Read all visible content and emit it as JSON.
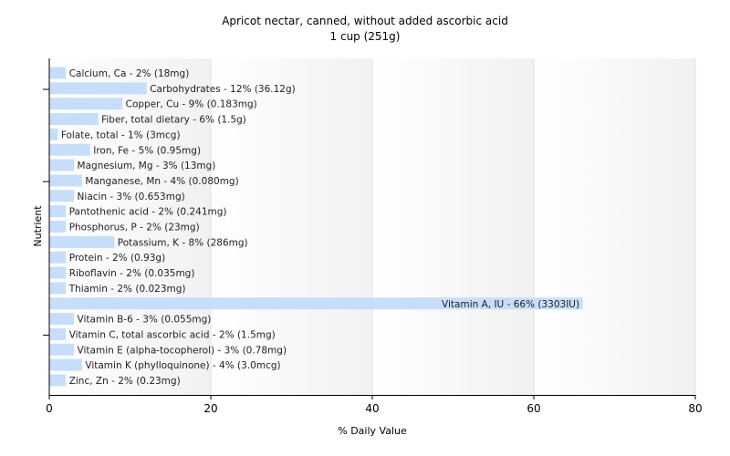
{
  "chart_data": {
    "type": "bar",
    "orientation": "horizontal",
    "title": "Apricot nectar, canned, without added ascorbic acid",
    "subtitle": "1 cup (251g)",
    "xlabel": "% Daily Value",
    "ylabel": "Nutrient",
    "xlim": [
      0,
      80
    ],
    "xticks": [
      "0",
      "20",
      "40",
      "60",
      "80"
    ],
    "grid": "vertical",
    "bar_color": "#c6defa",
    "categories": [
      "Calcium, Ca",
      "Carbohydrates",
      "Copper, Cu",
      "Fiber, total dietary",
      "Folate, total",
      "Iron, Fe",
      "Magnesium, Mg",
      "Manganese, Mn",
      "Niacin",
      "Pantothenic acid",
      "Phosphorus, P",
      "Potassium, K",
      "Protein",
      "Riboflavin",
      "Thiamin",
      "Vitamin A, IU",
      "Vitamin B-6",
      "Vitamin C, total ascorbic acid",
      "Vitamin E (alpha-tocopherol)",
      "Vitamin K (phylloquinone)",
      "Zinc, Zn"
    ],
    "values": [
      2,
      12,
      9,
      6,
      1,
      5,
      3,
      4,
      3,
      2,
      2,
      8,
      2,
      2,
      2,
      66,
      3,
      2,
      3,
      4,
      2
    ],
    "labels": [
      "Calcium, Ca - 2% (18mg)",
      "Carbohydrates - 12% (36.12g)",
      "Copper, Cu - 9% (0.183mg)",
      "Fiber, total dietary - 6% (1.5g)",
      "Folate, total - 1% (3mcg)",
      "Iron, Fe - 5% (0.95mg)",
      "Magnesium, Mg - 3% (13mg)",
      "Manganese, Mn - 4% (0.080mg)",
      "Niacin - 3% (0.653mg)",
      "Pantothenic acid - 2% (0.241mg)",
      "Phosphorus, P - 2% (23mg)",
      "Potassium, K - 8% (286mg)",
      "Protein - 2% (0.93g)",
      "Riboflavin - 2% (0.035mg)",
      "Thiamin - 2% (0.023mg)",
      "Vitamin A, IU - 66% (3303IU)",
      "Vitamin B-6 - 3% (0.055mg)",
      "Vitamin C, total ascorbic acid - 2% (1.5mg)",
      "Vitamin E (alpha-tocopherol) - 3% (0.78mg)",
      "Vitamin K (phylloquinone) - 4% (3.0mcg)",
      "Zinc, Zn - 2% (0.23mg)"
    ]
  }
}
